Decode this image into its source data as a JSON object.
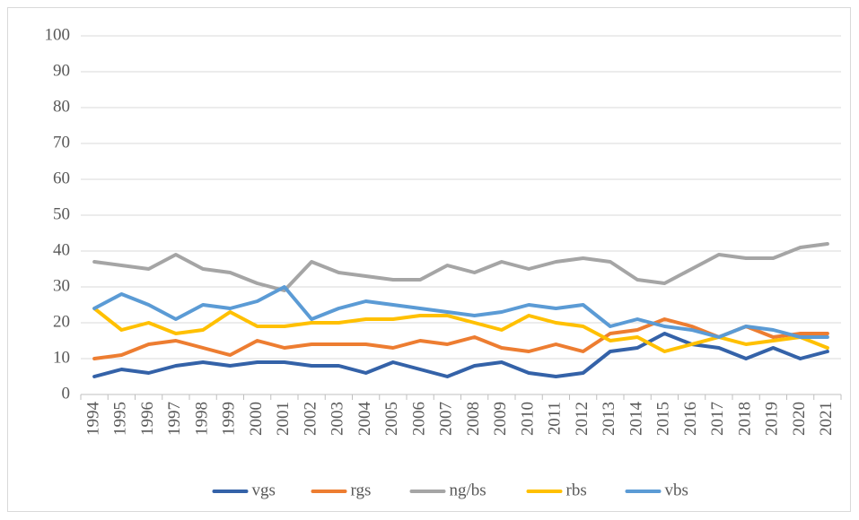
{
  "chart_data": {
    "type": "line",
    "categories": [
      "1994",
      "1995",
      "1996",
      "1997",
      "1998",
      "1999",
      "2000",
      "2001",
      "2002",
      "2003",
      "2004",
      "2005",
      "2006",
      "2007",
      "2008",
      "2009",
      "2010",
      "2011",
      "2012",
      "2013",
      "2014",
      "2015",
      "2016",
      "2017",
      "2018",
      "2019",
      "2020",
      "2021"
    ],
    "series": [
      {
        "name": "vgs",
        "color": "#3462a8",
        "values": [
          5,
          7,
          6,
          8,
          9,
          8,
          9,
          9,
          8,
          8,
          6,
          9,
          7,
          5,
          8,
          9,
          6,
          5,
          6,
          12,
          13,
          17,
          14,
          13,
          10,
          13,
          10,
          12
        ]
      },
      {
        "name": "rgs",
        "color": "#ed7d31",
        "values": [
          10,
          11,
          14,
          15,
          13,
          11,
          15,
          13,
          14,
          14,
          14,
          13,
          15,
          14,
          16,
          13,
          12,
          14,
          12,
          17,
          18,
          21,
          19,
          16,
          19,
          16,
          17,
          17
        ]
      },
      {
        "name": "ng/bs",
        "color": "#a5a5a5",
        "values": [
          37,
          36,
          35,
          39,
          35,
          34,
          31,
          29,
          37,
          34,
          33,
          32,
          32,
          36,
          34,
          37,
          35,
          37,
          38,
          37,
          32,
          31,
          35,
          39,
          38,
          38,
          41,
          42
        ]
      },
      {
        "name": "rbs",
        "color": "#ffc000",
        "values": [
          24,
          18,
          20,
          17,
          18,
          23,
          19,
          19,
          20,
          20,
          21,
          21,
          22,
          22,
          20,
          18,
          22,
          20,
          19,
          15,
          16,
          12,
          14,
          16,
          14,
          15,
          16,
          13
        ]
      },
      {
        "name": "vbs",
        "color": "#5b9bd5",
        "values": [
          24,
          28,
          25,
          21,
          25,
          24,
          26,
          30,
          21,
          24,
          26,
          25,
          24,
          23,
          22,
          23,
          25,
          24,
          25,
          19,
          21,
          19,
          18,
          16,
          19,
          18,
          16,
          16
        ]
      }
    ],
    "ylim": [
      0,
      100
    ],
    "yticks": [
      0,
      10,
      20,
      30,
      40,
      50,
      60,
      70,
      80,
      90,
      100
    ],
    "grid": true,
    "legend": "bottom"
  }
}
